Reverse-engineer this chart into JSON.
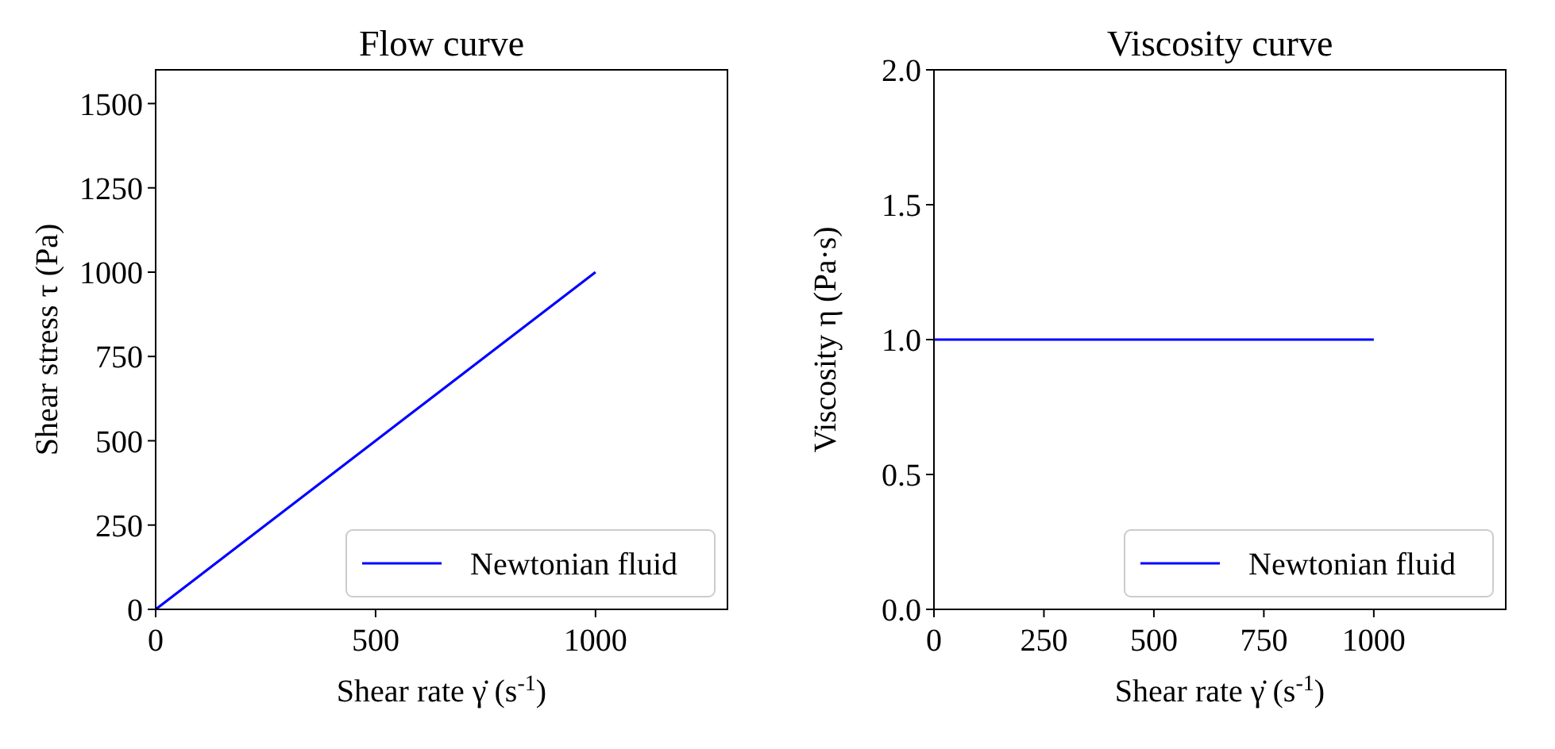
{
  "chart_data": [
    {
      "type": "line",
      "title": "Flow curve",
      "xlabel": "Shear rate γ̇ (s$^{-1}$)",
      "ylabel": "Shear stress τ (Pa)",
      "xlim": [
        0,
        1300
      ],
      "ylim": [
        0,
        1600
      ],
      "xticks": [
        0,
        500,
        1000
      ],
      "yticks": [
        0,
        250,
        500,
        750,
        1000,
        1250,
        1500
      ],
      "grid": false,
      "legend": "bottom right",
      "marker": "none",
      "line_style": "solid",
      "series": [
        {
          "name": "Newtonian fluid",
          "color": "#0000ff",
          "x": [
            0,
            250,
            500,
            750,
            1000
          ],
          "values": [
            0,
            250,
            500,
            750,
            1000
          ]
        }
      ]
    },
    {
      "type": "line",
      "title": "Viscosity curve",
      "xlabel": "Shear rate γ̇ (s$^{-1}$)",
      "ylabel": "Viscosity η (Pa·s)",
      "xlim": [
        0,
        1300
      ],
      "ylim": [
        0,
        2
      ],
      "xticks": [
        0,
        250,
        500,
        750,
        1000
      ],
      "yticks": [
        {
          "value": 0,
          "label": "0.0"
        },
        {
          "value": 0.5,
          "label": "0.5"
        },
        {
          "value": 1,
          "label": "1.0"
        },
        {
          "value": 1.5,
          "label": "1.5"
        },
        {
          "value": 2,
          "label": "2.0"
        }
      ],
      "grid": false,
      "legend": "bottom right",
      "marker": "none",
      "line_style": "solid",
      "series": [
        {
          "name": "Newtonian fluid",
          "color": "#0000ff",
          "x": [
            0,
            250,
            500,
            750,
            1000
          ],
          "values": [
            1,
            1,
            1,
            1,
            1
          ]
        }
      ]
    }
  ]
}
